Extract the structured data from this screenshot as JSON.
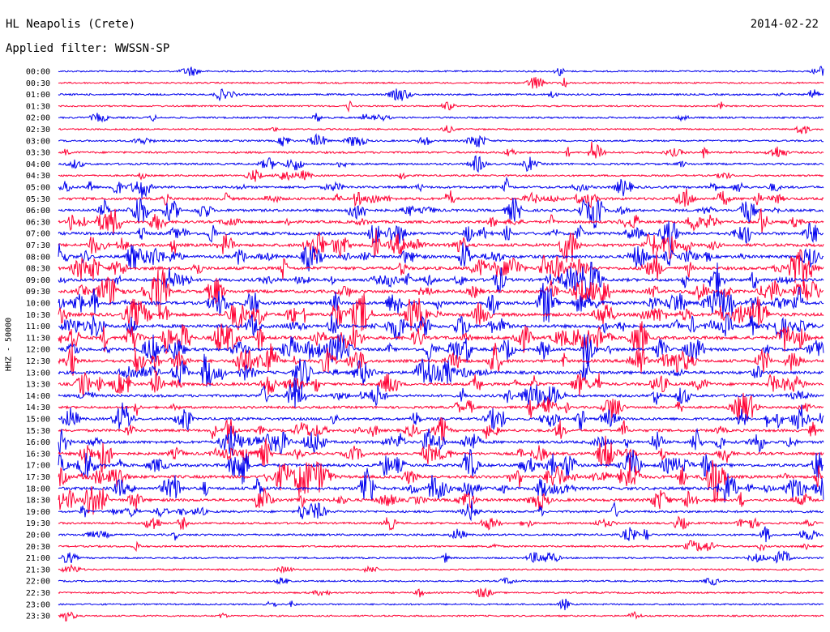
{
  "header": {
    "station": "HL Neapolis (Crete)",
    "date": "2014-02-22",
    "filter_label": "Applied filter: WWSSN-SP"
  },
  "chart_data": {
    "type": "line",
    "title": "HL Neapolis (Crete)",
    "subtitle": "Applied filter: WWSSN-SP",
    "ylabel": "HHZ - 50000",
    "xlabel": "",
    "grid": false,
    "legend": "none",
    "colors": [
      "#0000ee",
      "#ff0033"
    ],
    "row_labels": [
      "00:00",
      "00:30",
      "01:00",
      "01:30",
      "02:00",
      "02:30",
      "03:00",
      "03:30",
      "04:00",
      "04:30",
      "05:00",
      "05:30",
      "06:00",
      "06:30",
      "07:00",
      "07:30",
      "08:00",
      "08:30",
      "09:00",
      "09:30",
      "10:00",
      "10:30",
      "11:00",
      "11:30",
      "12:00",
      "12:30",
      "13:00",
      "13:30",
      "14:00",
      "14:30",
      "15:00",
      "15:30",
      "16:00",
      "16:30",
      "17:00",
      "17:30",
      "18:00",
      "18:30",
      "19:00",
      "19:30",
      "20:00",
      "20:30",
      "21:00",
      "21:30",
      "22:00",
      "22:30",
      "23:00",
      "23:30"
    ],
    "row_activity": [
      1,
      1,
      2,
      1,
      2,
      1,
      2,
      3,
      3,
      2,
      5,
      6,
      6,
      6,
      7,
      8,
      8,
      8,
      8,
      8,
      9,
      9,
      9,
      9,
      8,
      8,
      8,
      7,
      6,
      5,
      6,
      6,
      7,
      7,
      8,
      8,
      8,
      7,
      4,
      3,
      3,
      2,
      2,
      1,
      1,
      1,
      1,
      1
    ]
  }
}
